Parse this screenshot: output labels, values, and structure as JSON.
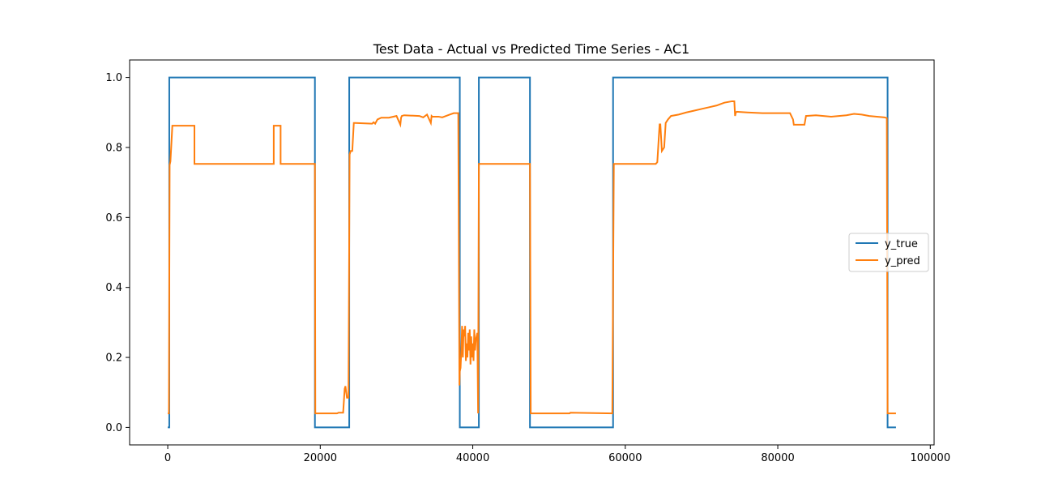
{
  "chart_data": {
    "type": "line",
    "title": "Test Data - Actual vs Predicted Time Series - AC1",
    "xlabel": "",
    "ylabel": "",
    "xlim": [
      -5000,
      100500
    ],
    "ylim": [
      -0.05,
      1.05
    ],
    "x_ticks": [
      0,
      20000,
      40000,
      60000,
      80000,
      100000
    ],
    "x_tick_labels": [
      "0",
      "20000",
      "40000",
      "60000",
      "80000",
      "100000"
    ],
    "y_ticks": [
      0.0,
      0.2,
      0.4,
      0.6,
      0.8,
      1.0
    ],
    "y_tick_labels": [
      "0.0",
      "0.2",
      "0.4",
      "0.6",
      "0.8",
      "1.0"
    ],
    "grid": false,
    "legend_position": "center-right",
    "series": [
      {
        "name": "y_true",
        "color": "#1f77b4",
        "x": [
          0,
          200,
          200,
          19300,
          19300,
          23800,
          23800,
          38300,
          38300,
          40800,
          40800,
          47500,
          47500,
          58400,
          58400,
          94400,
          94400,
          95500
        ],
        "y": [
          0,
          0,
          1,
          1,
          0,
          0,
          1,
          1,
          0,
          0,
          1,
          1,
          0,
          0,
          1,
          1,
          0,
          0
        ]
      },
      {
        "name": "y_pred",
        "color": "#ff7f0e",
        "x": [
          0,
          150,
          250,
          350,
          500,
          600,
          700,
          3500,
          3500,
          13900,
          13900,
          14800,
          14800,
          19300,
          19350,
          22200,
          22400,
          22500,
          22600,
          23000,
          23200,
          23300,
          23500,
          23700,
          23850,
          24000,
          24200,
          24400,
          24600,
          26800,
          27000,
          27200,
          27500,
          28000,
          29000,
          30000,
          30500,
          30600,
          30700,
          31000,
          33000,
          33500,
          34000,
          34500,
          34600,
          34700,
          35500,
          36000,
          37000,
          37500,
          38100,
          38250,
          38300,
          38400,
          38500,
          38600,
          38700,
          38800,
          38900,
          39000,
          39100,
          39200,
          39300,
          39400,
          39500,
          39600,
          39700,
          39800,
          39900,
          40000,
          40100,
          40200,
          40300,
          40400,
          40600,
          40700,
          40800,
          41000,
          47500,
          47600,
          52700,
          52800,
          58300,
          58500,
          60000,
          62000,
          63500,
          64000,
          64200,
          64500,
          64600,
          64800,
          65100,
          65300,
          65600,
          66000,
          67000,
          68000,
          69000,
          70000,
          71000,
          72000,
          73000,
          74000,
          74300,
          74400,
          74500,
          74600,
          76000,
          78000,
          80000,
          81600,
          82000,
          82100,
          83500,
          83700,
          85000,
          86000,
          87000,
          88000,
          89000,
          90000,
          91000,
          92000,
          93000,
          94000,
          94300,
          94400,
          94500,
          95500
        ],
        "y": [
          0.04,
          0.04,
          0.75,
          0.76,
          0.82,
          0.862,
          0.862,
          0.862,
          0.753,
          0.753,
          0.862,
          0.862,
          0.753,
          0.753,
          0.04,
          0.04,
          0.042,
          0.042,
          0.042,
          0.042,
          0.11,
          0.118,
          0.085,
          0.085,
          0.78,
          0.79,
          0.79,
          0.87,
          0.87,
          0.868,
          0.872,
          0.868,
          0.88,
          0.885,
          0.885,
          0.89,
          0.865,
          0.885,
          0.89,
          0.892,
          0.89,
          0.886,
          0.894,
          0.87,
          0.89,
          0.888,
          0.888,
          0.886,
          0.894,
          0.898,
          0.898,
          0.12,
          0.16,
          0.17,
          0.22,
          0.29,
          0.2,
          0.28,
          0.26,
          0.29,
          0.19,
          0.24,
          0.2,
          0.27,
          0.22,
          0.28,
          0.18,
          0.26,
          0.2,
          0.24,
          0.19,
          0.28,
          0.22,
          0.25,
          0.27,
          0.04,
          0.753,
          0.753,
          0.753,
          0.04,
          0.04,
          0.042,
          0.04,
          0.753,
          0.753,
          0.753,
          0.753,
          0.753,
          0.758,
          0.866,
          0.866,
          0.79,
          0.8,
          0.87,
          0.88,
          0.89,
          0.894,
          0.9,
          0.905,
          0.91,
          0.915,
          0.92,
          0.928,
          0.932,
          0.932,
          0.89,
          0.9,
          0.902,
          0.9,
          0.898,
          0.898,
          0.898,
          0.88,
          0.865,
          0.865,
          0.89,
          0.892,
          0.89,
          0.888,
          0.89,
          0.892,
          0.896,
          0.894,
          0.89,
          0.888,
          0.886,
          0.884,
          0.04,
          0.04,
          0.04
        ]
      }
    ]
  }
}
